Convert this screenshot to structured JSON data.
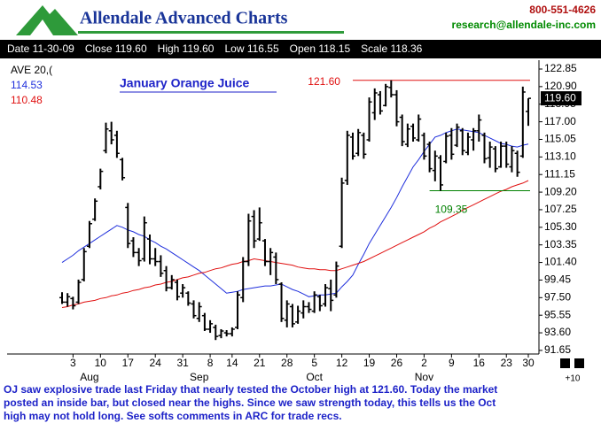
{
  "header": {
    "logo": "Allendale Advanced Charts",
    "phone": "800-551-4626",
    "email": "research@allendale-inc.com"
  },
  "stats": [
    "Date 11-30-09",
    "Close 119.60",
    "High 119.60",
    "Low 116.55",
    "Open 118.15",
    "Scale 118.36"
  ],
  "commentary": [
    "OJ saw explosive trade last Friday that nearly tested the October high at 121.60. Today the market",
    "posted an inside bar, but closed near the highs.  Since we saw strength today, this tells us the Oct",
    "high may not hold long.  See softs comments in ARC for trade recs."
  ],
  "chart_data": {
    "type": "ohlc",
    "title": "January Orange Juice",
    "color": "#000000",
    "categories": [
      null,
      null,
      "3",
      null,
      null,
      null,
      null,
      "10",
      null,
      null,
      null,
      null,
      "17",
      null,
      null,
      null,
      null,
      "24",
      null,
      null,
      null,
      null,
      "31",
      null,
      null,
      null,
      null,
      "8",
      null,
      null,
      null,
      "14",
      null,
      null,
      null,
      null,
      "21",
      null,
      null,
      null,
      null,
      "28",
      null,
      null,
      null,
      null,
      "5",
      null,
      null,
      null,
      null,
      "12",
      null,
      null,
      null,
      null,
      "19",
      null,
      null,
      null,
      null,
      "26",
      null,
      null,
      null,
      null,
      "2",
      null,
      null,
      null,
      null,
      "9",
      null,
      null,
      null,
      null,
      "16",
      null,
      null,
      null,
      null,
      "23",
      null,
      null,
      null,
      "30"
    ],
    "month_labels": [
      {
        "label": "Aug",
        "category": 5
      },
      {
        "label": "Sep",
        "category": 25
      },
      {
        "label": "Oct",
        "category": 46
      },
      {
        "label": "Nov",
        "category": 66
      }
    ],
    "open": [
      97.5,
      97.0,
      97.4,
      97.0,
      99.5,
      103.2,
      106.2,
      109.8,
      113.8,
      116.0,
      115.5,
      112.8,
      107.5,
      103.8,
      102.5,
      101.8,
      104.0,
      101.8,
      101.5,
      100.5,
      98.6,
      99.2,
      98.0,
      98.0,
      96.8,
      95.2,
      95.5,
      94.0,
      94.2,
      93.3,
      93.6,
      93.5,
      94.2,
      97.5,
      101.5,
      106.5,
      104.0,
      103.8,
      101.5,
      102.0,
      99.0,
      95.0,
      96.5,
      94.8,
      95.8,
      96.5,
      96.0,
      97.6,
      96.8,
      98.5,
      97.8,
      103.2,
      110.5,
      115.3,
      113.5,
      115.5,
      115.0,
      118.0,
      120.0,
      118.8,
      120.8,
      120.0,
      117.5,
      114.5,
      116.5,
      115.0,
      115.5,
      114.5,
      111.6,
      113.0,
      112.6,
      115.5,
      114.4,
      116.0,
      113.6,
      115.0,
      116.0,
      115.5,
      113.0,
      114.0,
      112.0,
      114.3,
      112.0,
      113.5,
      113.2,
      118.15
    ],
    "high": [
      98.1,
      98.0,
      97.6,
      99.5,
      103.0,
      106.0,
      108.5,
      111.8,
      116.9,
      117.0,
      116.0,
      113.0,
      108.0,
      104.2,
      103.0,
      106.5,
      104.5,
      103.0,
      102.2,
      101.0,
      100.0,
      99.5,
      99.0,
      98.2,
      97.2,
      97.0,
      95.8,
      95.0,
      94.5,
      94.0,
      93.9,
      94.2,
      98.2,
      102.0,
      106.8,
      107.2,
      107.5,
      104.0,
      103.0,
      102.5,
      99.2,
      97.2,
      96.8,
      96.6,
      97.2,
      97.0,
      98.2,
      97.8,
      99.0,
      99.5,
      101.5,
      110.8,
      116.0,
      115.8,
      116.2,
      115.8,
      119.7,
      120.7,
      120.4,
      121.2,
      121.6,
      120.5,
      117.8,
      116.8,
      116.8,
      117.8,
      115.8,
      114.8,
      113.8,
      113.3,
      115.8,
      116.3,
      116.8,
      116.3,
      115.8,
      116.3,
      117.8,
      115.8,
      114.8,
      114.3,
      114.8,
      114.8,
      114.3,
      113.8,
      120.9,
      119.6
    ],
    "low": [
      96.8,
      96.5,
      96.2,
      96.8,
      99.3,
      103.0,
      106.0,
      109.5,
      113.5,
      114.5,
      113.0,
      110.5,
      103.0,
      102.0,
      101.0,
      101.5,
      101.2,
      101.0,
      99.8,
      98.2,
      98.4,
      97.2,
      97.5,
      96.6,
      95.2,
      94.8,
      93.8,
      93.6,
      92.8,
      93.0,
      93.2,
      93.2,
      94.0,
      97.0,
      101.0,
      103.0,
      103.8,
      101.0,
      100.0,
      99.0,
      94.8,
      94.2,
      94.2,
      94.6,
      95.2,
      95.8,
      95.8,
      96.0,
      96.5,
      96.0,
      97.5,
      103.0,
      110.0,
      112.8,
      113.2,
      112.9,
      114.8,
      117.2,
      117.8,
      118.7,
      119.7,
      116.5,
      114.3,
      114.2,
      114.8,
      114.8,
      112.8,
      111.4,
      110.4,
      109.35,
      112.4,
      112.8,
      114.2,
      113.3,
      113.3,
      113.8,
      114.8,
      112.4,
      111.9,
      111.4,
      111.9,
      111.9,
      111.4,
      110.9,
      113.0,
      116.55
    ],
    "close": [
      97.0,
      97.6,
      96.6,
      99.2,
      102.6,
      105.7,
      108.2,
      111.5,
      116.2,
      115.0,
      113.5,
      110.8,
      103.5,
      102.5,
      101.6,
      105.8,
      101.8,
      101.5,
      100.2,
      98.6,
      99.5,
      97.6,
      98.6,
      96.9,
      95.5,
      96.5,
      94.0,
      94.6,
      93.2,
      93.8,
      93.5,
      94.0,
      97.8,
      101.5,
      106.0,
      103.8,
      105.8,
      101.5,
      102.5,
      99.5,
      95.2,
      96.8,
      94.6,
      96.0,
      96.5,
      96.2,
      97.8,
      96.6,
      98.6,
      97.2,
      101.0,
      110.2,
      115.5,
      113.2,
      115.8,
      113.4,
      119.2,
      120.2,
      118.2,
      120.9,
      120.0,
      117.0,
      114.8,
      116.2,
      115.2,
      117.3,
      113.2,
      111.8,
      113.2,
      110.0,
      115.4,
      113.4,
      116.4,
      113.8,
      115.3,
      116.0,
      117.2,
      112.9,
      114.2,
      111.8,
      114.3,
      112.3,
      113.8,
      111.4,
      120.3,
      119.6
    ],
    "legend_title": "AVE 20,(",
    "series": [
      {
        "name": "114.53",
        "color": "#1f2fdc",
        "values": [
          101.4,
          101.8,
          102.2,
          102.7,
          103.1,
          103.5,
          103.9,
          104.3,
          104.7,
          105.1,
          105.5,
          105.3,
          105.0,
          104.8,
          104.5,
          104.3,
          103.9,
          103.6,
          103.2,
          102.9,
          102.5,
          102.1,
          101.7,
          101.3,
          100.9,
          100.5,
          100.0,
          99.5,
          99.0,
          98.5,
          98.0,
          98.1,
          98.2,
          98.4,
          98.5,
          98.6,
          98.7,
          98.8,
          98.8,
          98.9,
          99.0,
          98.7,
          98.4,
          98.2,
          97.9,
          97.6,
          97.7,
          97.8,
          97.8,
          97.9,
          98.0,
          98.7,
          99.3,
          100.0,
          101.2,
          102.3,
          103.5,
          104.5,
          105.5,
          106.5,
          107.5,
          108.6,
          109.8,
          110.9,
          112.0,
          112.8,
          113.7,
          114.5,
          115.3,
          115.5,
          115.8,
          116.0,
          116.2,
          116.1,
          116.0,
          115.9,
          115.8,
          115.5,
          115.2,
          114.9,
          114.6,
          114.5,
          114.3,
          114.2,
          114.4,
          114.53
        ]
      },
      {
        "name": "110.48",
        "color": "#e01010",
        "values": [
          96.4,
          96.5,
          96.7,
          96.8,
          97.0,
          97.1,
          97.2,
          97.4,
          97.5,
          97.7,
          97.8,
          98.0,
          98.1,
          98.3,
          98.4,
          98.6,
          98.7,
          98.9,
          99.0,
          99.2,
          99.3,
          99.5,
          99.7,
          99.8,
          100.0,
          100.2,
          100.3,
          100.5,
          100.7,
          100.8,
          101.0,
          101.2,
          101.3,
          101.5,
          101.6,
          101.8,
          101.7,
          101.6,
          101.5,
          101.4,
          101.3,
          101.2,
          101.1,
          100.9,
          100.8,
          100.7,
          100.7,
          100.6,
          100.6,
          100.5,
          100.5,
          100.7,
          100.9,
          101.1,
          101.3,
          101.5,
          101.8,
          102.1,
          102.4,
          102.7,
          103.0,
          103.3,
          103.6,
          103.9,
          104.2,
          104.5,
          104.8,
          105.2,
          105.5,
          105.9,
          106.2,
          106.5,
          106.8,
          107.2,
          107.5,
          107.8,
          108.1,
          108.4,
          108.7,
          109.0,
          109.3,
          109.5,
          109.8,
          110.0,
          110.2,
          110.48
        ]
      }
    ],
    "annotations": [
      {
        "label": "121.60",
        "value": 121.6,
        "color": "#e01010",
        "start": 53,
        "placement": "left"
      },
      {
        "label": "109.35",
        "value": 109.35,
        "color": "#008000",
        "start": 67,
        "placement": "below"
      }
    ],
    "last_price": {
      "value": 119.6,
      "label": "119.60"
    },
    "corner_label": "+10",
    "ylim": [
      91.25,
      123.83
    ],
    "yticks": [
      122.85,
      {
        "value": 120.9,
        "label": "120.90"
      },
      118.95,
      {
        "value": 117,
        "label": "117.00"
      },
      115.05,
      {
        "value": 113.1,
        "label": "113.10"
      },
      111.15,
      {
        "value": 109.2,
        "label": "109.20"
      },
      107.25,
      {
        "value": 105.3,
        "label": "105.30"
      },
      103.35,
      {
        "value": 101.4,
        "label": "101.40"
      },
      99.45,
      {
        "value": 97.5,
        "label": "97.50"
      },
      95.55,
      {
        "value": 93.6,
        "label": "93.60"
      },
      91.65
    ]
  }
}
